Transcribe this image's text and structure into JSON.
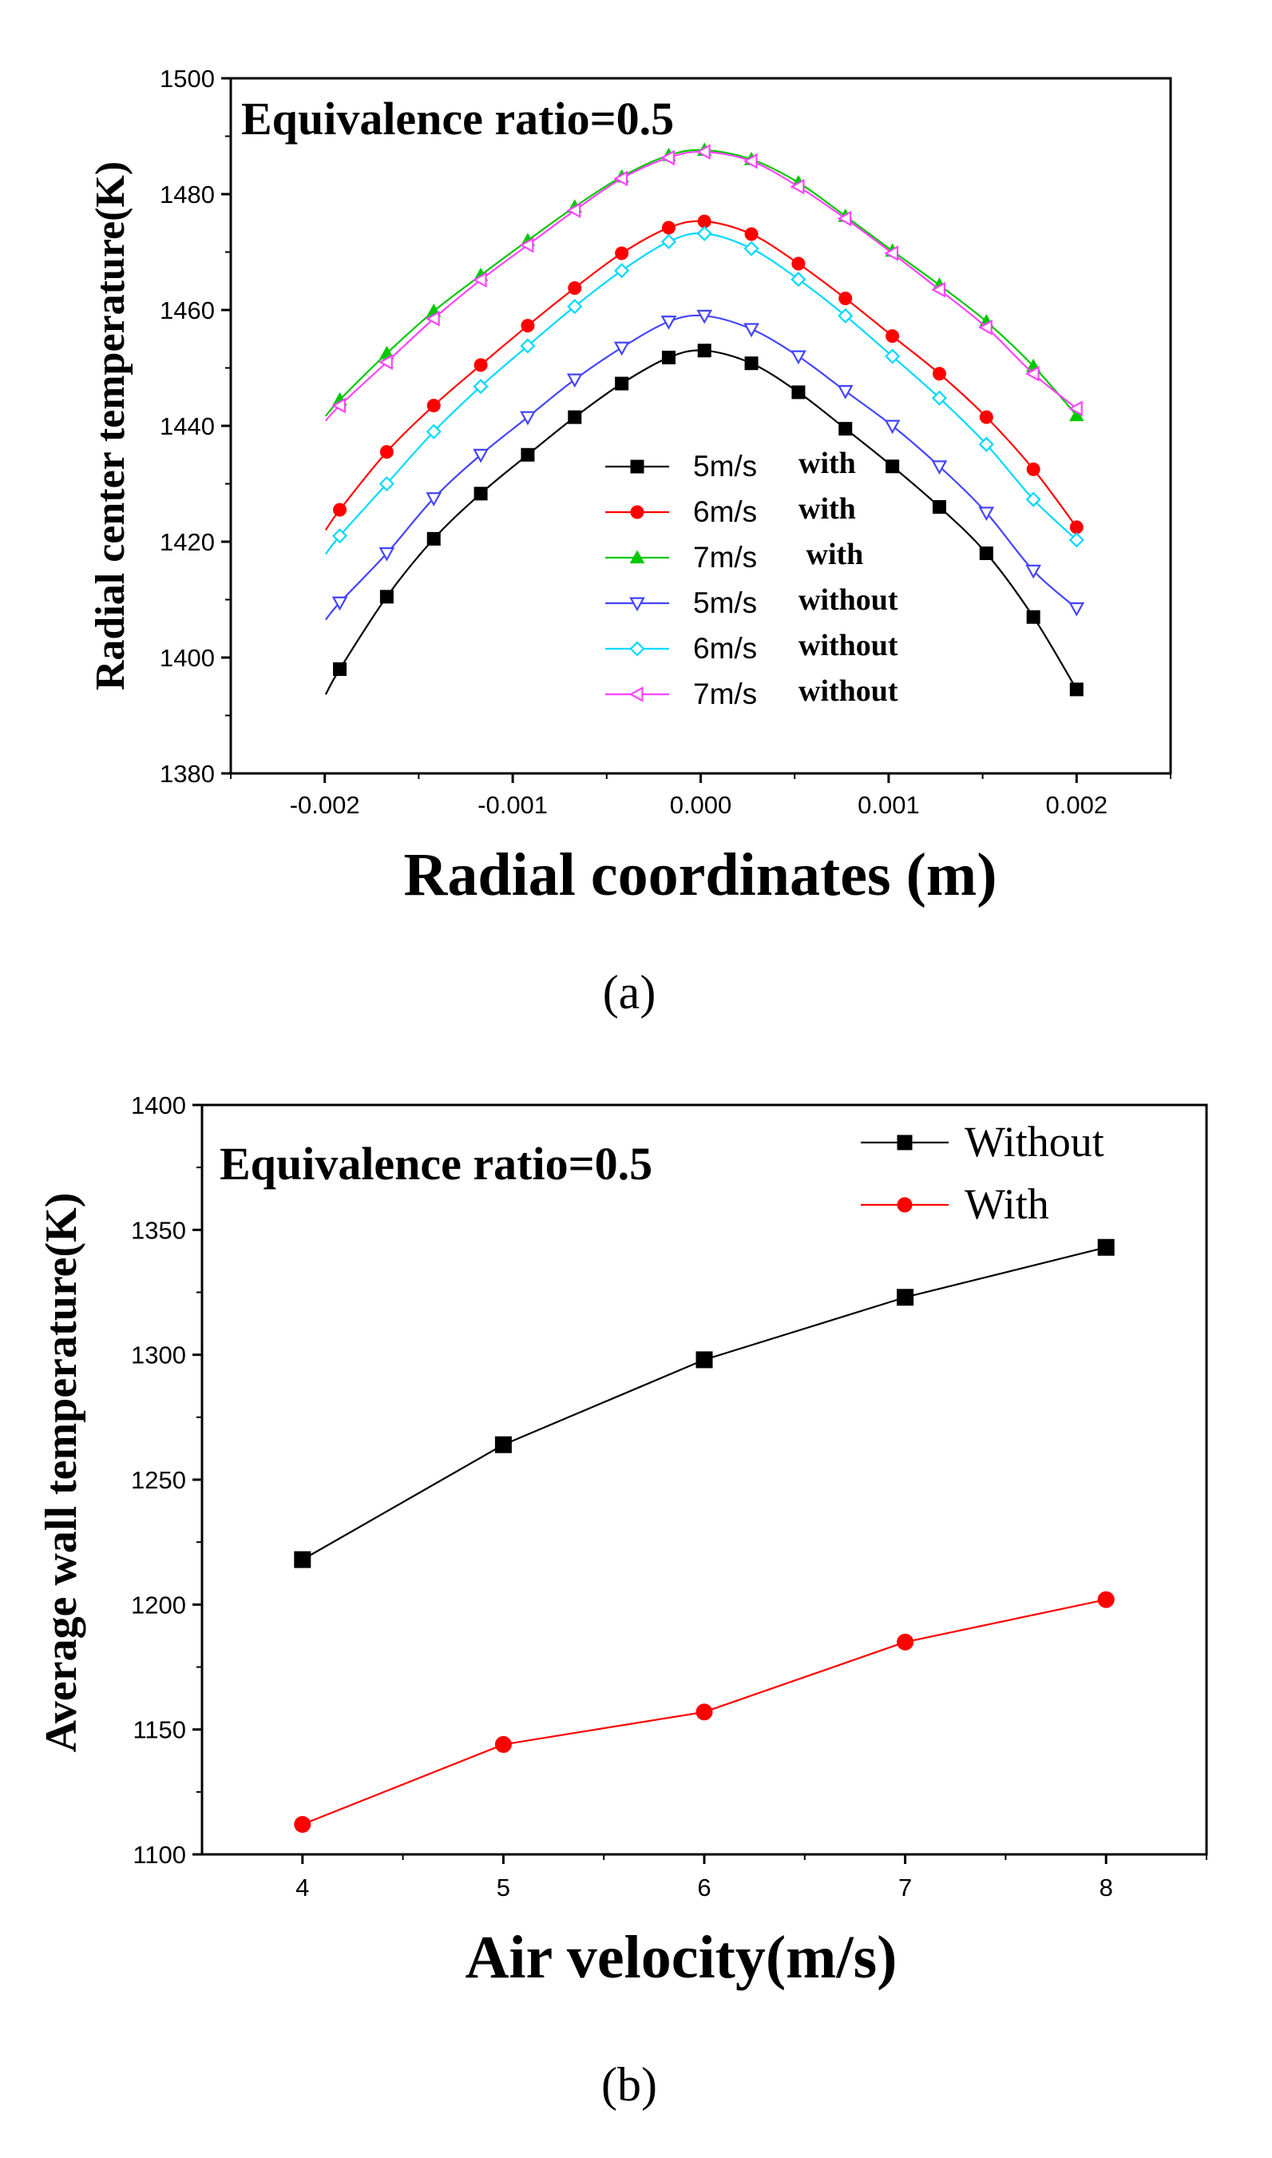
{
  "chart_data": [
    {
      "panel_label": "(a)",
      "type": "line",
      "title": "",
      "annotation": "Equivalence ratio=0.5",
      "xlabel": "Radial coordinates (m)",
      "ylabel": "Radial center temperature(K)",
      "xlim": [
        -0.0025,
        0.0025
      ],
      "ylim": [
        1380,
        1500
      ],
      "xticks": [
        -0.002,
        -0.001,
        0.0,
        0.001,
        0.002
      ],
      "xtick_labels": [
        "-0.002",
        "-0.001",
        "0.000",
        "0.001",
        "0.002"
      ],
      "yticks": [
        1380,
        1400,
        1420,
        1440,
        1460,
        1480,
        1500
      ],
      "ytick_labels": [
        "1380",
        "1400",
        "1420",
        "1440",
        "1460",
        "1480",
        "1500"
      ],
      "legend_position": "lower-center",
      "x": [
        -0.00192,
        -0.00167,
        -0.00142,
        -0.00117,
        -0.00092,
        -0.00067,
        -0.00042,
        -0.00017,
        2e-05,
        0.00027,
        0.00052,
        0.00077,
        0.00102,
        0.00127,
        0.00152,
        0.00177,
        0.002
      ],
      "series": [
        {
          "name": "5m/s",
          "suffix": "with",
          "color": "#000000",
          "marker": "square-filled",
          "values": [
            1398,
            1410.5,
            1420.5,
            1428.3,
            1435,
            1441.5,
            1447.3,
            1451.8,
            1453,
            1450.8,
            1445.8,
            1439.5,
            1433,
            1426,
            1418,
            1407,
            1394.5
          ]
        },
        {
          "name": "6m/s",
          "suffix": "with",
          "color": "#ff0000",
          "marker": "circle-filled",
          "values": [
            1425.5,
            1435.5,
            1443.5,
            1450.5,
            1457.3,
            1463.8,
            1469.8,
            1474.2,
            1475.3,
            1473.1,
            1468,
            1462,
            1455.5,
            1449,
            1441.5,
            1432.5,
            1422.5
          ]
        },
        {
          "name": "7m/s",
          "suffix": " with",
          "color": "#00c800",
          "marker": "triangle-up-filled",
          "values": [
            1444.5,
            1452.5,
            1459.8,
            1466,
            1472,
            1477.8,
            1483,
            1486.7,
            1487.6,
            1486,
            1482,
            1476.2,
            1470.2,
            1464.3,
            1458,
            1450.3,
            1441.8
          ]
        },
        {
          "name": "5m/s",
          "suffix": "without",
          "color": "#4444ff",
          "marker": "triangle-down-open",
          "values": [
            1409.5,
            1418,
            1427.5,
            1435,
            1441.5,
            1448,
            1453.5,
            1458,
            1459,
            1456.7,
            1452,
            1446,
            1440,
            1433,
            1425,
            1415,
            1408.5
          ]
        },
        {
          "name": "6m/s",
          "suffix": "without",
          "color": "#00d8ff",
          "marker": "diamond-open",
          "values": [
            1421,
            1430,
            1439,
            1446.8,
            1453.8,
            1460.6,
            1466.8,
            1471.8,
            1473.2,
            1470.6,
            1465.3,
            1459,
            1452,
            1444.8,
            1436.8,
            1427.3,
            1420.3
          ]
        },
        {
          "name": "7m/s",
          "suffix": "without",
          "color": "#ff44ff",
          "marker": "triangle-left-open",
          "values": [
            1443.5,
            1451,
            1458.5,
            1465.2,
            1471.2,
            1477.2,
            1482.7,
            1486.3,
            1487.3,
            1485.7,
            1481.3,
            1475.8,
            1469.8,
            1463.5,
            1457,
            1449,
            1443
          ]
        }
      ]
    },
    {
      "panel_label": "(b)",
      "type": "line",
      "title": "",
      "annotation": "Equivalence ratio=0.5",
      "xlabel": "Air velocity(m/s)",
      "ylabel": "Average wall temperature(K)",
      "xlim": [
        3.5,
        8.5
      ],
      "ylim": [
        1100,
        1400
      ],
      "xticks": [
        4,
        5,
        6,
        7,
        8
      ],
      "xtick_labels": [
        "4",
        "5",
        "6",
        "7",
        "8"
      ],
      "yticks": [
        1100,
        1150,
        1200,
        1250,
        1300,
        1350,
        1400
      ],
      "ytick_labels": [
        "1100",
        "1150",
        "1200",
        "1250",
        "1300",
        "1350",
        "1400"
      ],
      "legend_position": "top-right",
      "x": [
        4,
        5,
        6,
        7,
        8
      ],
      "series": [
        {
          "name": "Without",
          "color": "#000000",
          "marker": "square-filled",
          "values": [
            1218,
            1264,
            1298,
            1323,
            1343
          ]
        },
        {
          "name": "With",
          "color": "#ff0000",
          "marker": "circle-filled",
          "values": [
            1112,
            1144,
            1157,
            1185,
            1202
          ]
        }
      ]
    }
  ]
}
